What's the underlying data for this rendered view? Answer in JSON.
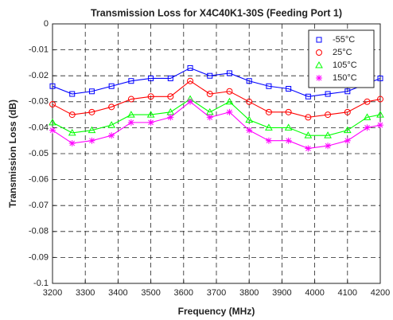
{
  "chart_data": {
    "type": "line",
    "title": "Transmission Loss for X4C40K1-30S (Feeding Port 1)",
    "xlabel": "Frequency (MHz)",
    "ylabel": "Transmission Loss (dB)",
    "x": [
      3200,
      3260,
      3320,
      3380,
      3440,
      3500,
      3560,
      3620,
      3680,
      3740,
      3800,
      3860,
      3920,
      3980,
      4040,
      4100,
      4160,
      4200
    ],
    "series": [
      {
        "name": "-55°C",
        "color": "#0000ff",
        "marker": "square",
        "values": [
          -0.024,
          -0.027,
          -0.026,
          -0.024,
          -0.022,
          -0.021,
          -0.021,
          -0.017,
          -0.02,
          -0.019,
          -0.022,
          -0.024,
          -0.025,
          -0.028,
          -0.027,
          -0.026,
          -0.023,
          -0.021
        ]
      },
      {
        "name": "25°C",
        "color": "#ff0000",
        "marker": "circle",
        "values": [
          -0.031,
          -0.035,
          -0.034,
          -0.032,
          -0.029,
          -0.028,
          -0.028,
          -0.022,
          -0.027,
          -0.026,
          -0.03,
          -0.034,
          -0.034,
          -0.036,
          -0.035,
          -0.034,
          -0.03,
          -0.029
        ]
      },
      {
        "name": "105°C",
        "color": "#00ff00",
        "marker": "triangle",
        "values": [
          -0.038,
          -0.042,
          -0.041,
          -0.039,
          -0.035,
          -0.035,
          -0.034,
          -0.029,
          -0.034,
          -0.03,
          -0.037,
          -0.04,
          -0.04,
          -0.043,
          -0.043,
          -0.041,
          -0.036,
          -0.035
        ]
      },
      {
        "name": "150°C",
        "color": "#ff00ff",
        "marker": "asterisk",
        "values": [
          -0.041,
          -0.046,
          -0.045,
          -0.043,
          -0.038,
          -0.038,
          -0.036,
          -0.03,
          -0.036,
          -0.034,
          -0.041,
          -0.045,
          -0.045,
          -0.048,
          -0.047,
          -0.045,
          -0.04,
          -0.039
        ]
      }
    ],
    "xlim": [
      3200,
      4200
    ],
    "xticks": [
      3200,
      3300,
      3400,
      3500,
      3600,
      3700,
      3800,
      3900,
      4000,
      4100,
      4200
    ],
    "ylim": [
      -0.1,
      0
    ],
    "yticks": [
      -0.1,
      -0.09,
      -0.08,
      -0.07,
      -0.06,
      -0.05,
      -0.04,
      -0.03,
      -0.02,
      -0.01,
      0
    ],
    "grid": true,
    "legend": "top-right"
  }
}
